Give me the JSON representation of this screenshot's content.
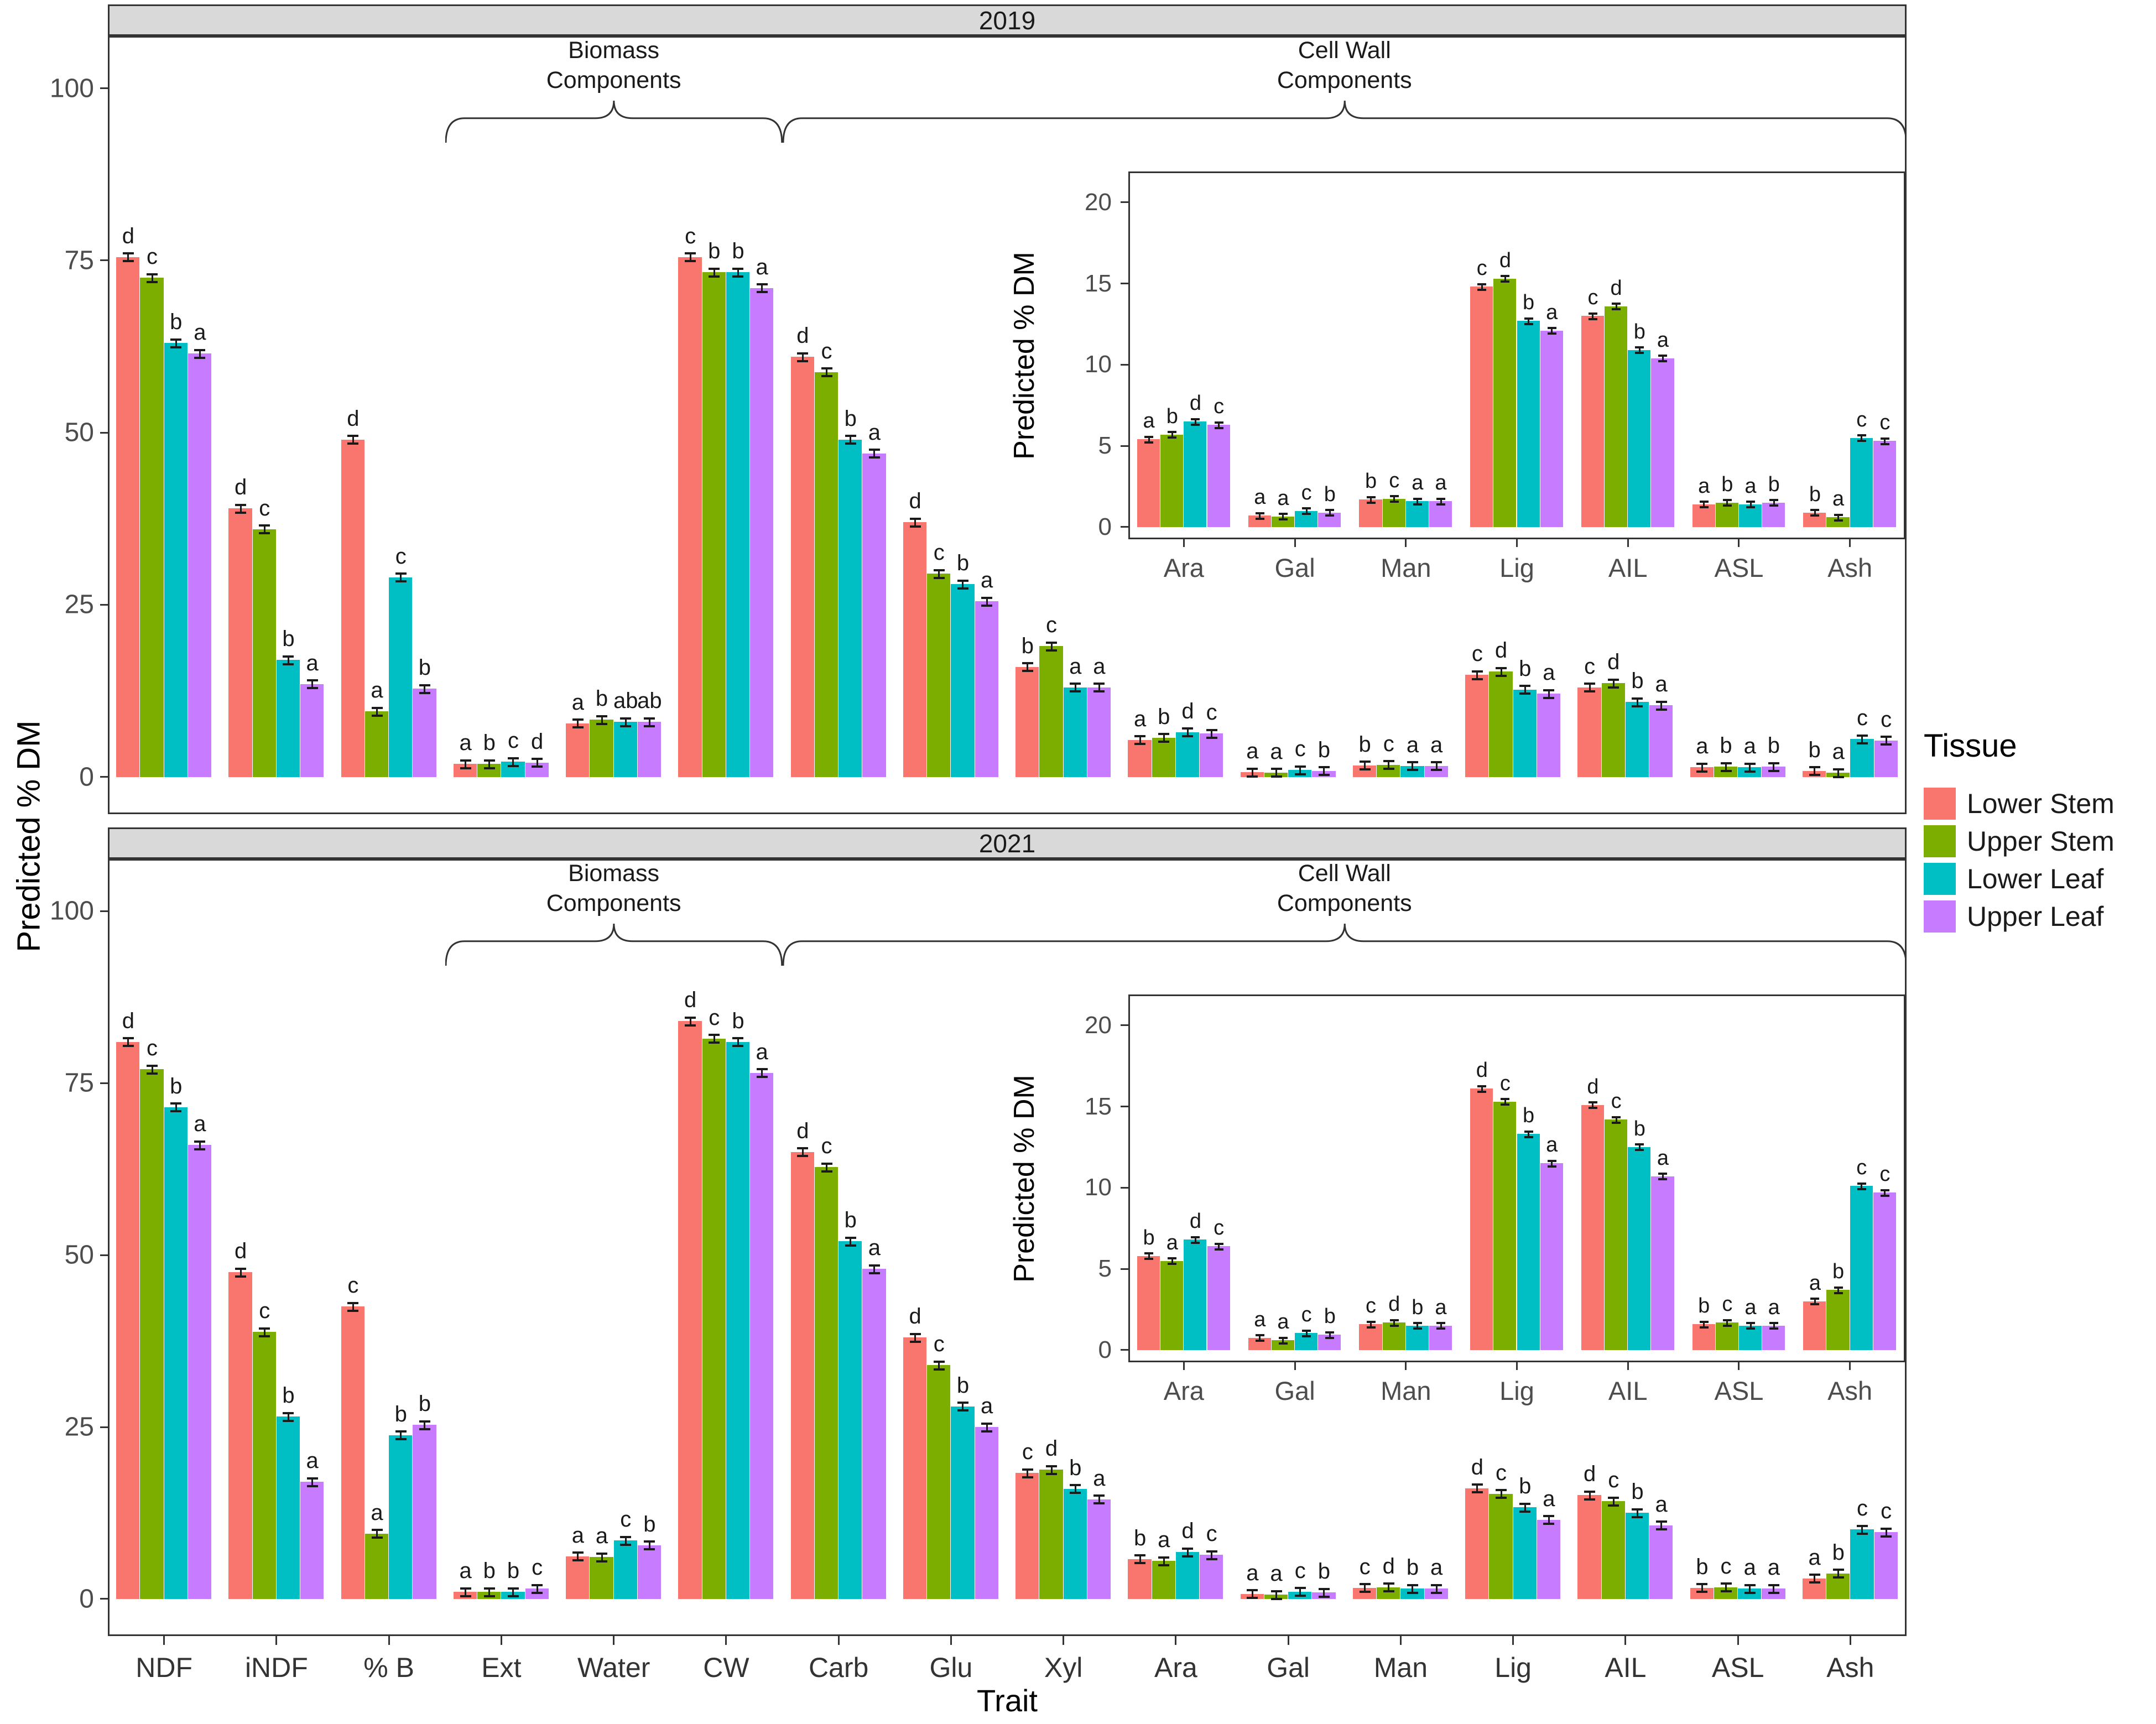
{
  "axes": {
    "y_title": "Predicted % DM",
    "x_title": "Trait"
  },
  "legend": {
    "title": "Tissue",
    "items": [
      {
        "label": "Lower Stem",
        "color": "#F8766D"
      },
      {
        "label": "Upper Stem",
        "color": "#7CAE00"
      },
      {
        "label": "Lower Leaf",
        "color": "#00BFC4"
      },
      {
        "label": "Upper Leaf",
        "color": "#C77CFF"
      }
    ]
  },
  "colors": {
    "palette": [
      "#F8766D",
      "#7CAE00",
      "#00BFC4",
      "#C77CFF"
    ],
    "strip_bg": "#D9D9D9",
    "panel_border": "#333333",
    "axis_text": "#4D4D4D"
  },
  "chart_data": [
    {
      "type": "bar",
      "title": "2019",
      "ylabel": "Predicted % DM",
      "xlabel": "Trait",
      "ylim": [
        0,
        100
      ],
      "yticks": [
        0,
        25,
        50,
        75,
        100
      ],
      "grid": false,
      "legend_position": "right",
      "series_names": [
        "Lower Stem",
        "Upper Stem",
        "Lower Leaf",
        "Upper Leaf"
      ],
      "error_bars": true,
      "groups": [
        {
          "trait": "NDF",
          "values": [
            75.5,
            72.5,
            63.0,
            61.5
          ],
          "letters": [
            "d",
            "c",
            "b",
            "a"
          ]
        },
        {
          "trait": "iNDF",
          "values": [
            39.0,
            36.0,
            17.0,
            13.5
          ],
          "letters": [
            "d",
            "c",
            "b",
            "a"
          ]
        },
        {
          "trait": "% B",
          "values": [
            49.0,
            9.5,
            29.0,
            12.8
          ],
          "letters": [
            "d",
            "a",
            "c",
            "b"
          ]
        },
        {
          "trait": "Ext",
          "values": [
            1.9,
            1.9,
            2.2,
            2.1
          ],
          "letters": [
            "a",
            "b",
            "c",
            "d"
          ]
        },
        {
          "trait": "Water",
          "values": [
            7.8,
            8.3,
            8.0,
            8.0
          ],
          "letters": [
            "a",
            "b",
            "ab",
            "ab"
          ]
        },
        {
          "trait": "CW",
          "values": [
            75.5,
            73.3,
            73.3,
            71.0
          ],
          "letters": [
            "c",
            "b",
            "b",
            "a"
          ]
        },
        {
          "trait": "Carb",
          "values": [
            61.0,
            58.8,
            49.0,
            47.0
          ],
          "letters": [
            "d",
            "c",
            "b",
            "a"
          ]
        },
        {
          "trait": "Glu",
          "values": [
            37.0,
            29.5,
            28.0,
            25.5
          ],
          "letters": [
            "d",
            "c",
            "b",
            "a"
          ]
        },
        {
          "trait": "Xyl",
          "values": [
            16.0,
            19.0,
            13.0,
            13.0
          ],
          "letters": [
            "b",
            "c",
            "a",
            "a"
          ]
        },
        {
          "trait": "Ara",
          "values": [
            5.4,
            5.7,
            6.5,
            6.3
          ],
          "letters": [
            "a",
            "b",
            "d",
            "c"
          ]
        },
        {
          "trait": "Gal",
          "values": [
            0.7,
            0.65,
            1.0,
            0.9
          ],
          "letters": [
            "a",
            "a",
            "c",
            "b"
          ]
        },
        {
          "trait": "Man",
          "values": [
            1.7,
            1.75,
            1.6,
            1.6
          ],
          "letters": [
            "b",
            "c",
            "a",
            "a"
          ]
        },
        {
          "trait": "Lig",
          "values": [
            14.8,
            15.3,
            12.7,
            12.1
          ],
          "letters": [
            "c",
            "d",
            "b",
            "a"
          ]
        },
        {
          "trait": "AIL",
          "values": [
            13.0,
            13.6,
            10.9,
            10.4
          ],
          "letters": [
            "c",
            "d",
            "b",
            "a"
          ]
        },
        {
          "trait": "ASL",
          "values": [
            1.4,
            1.5,
            1.4,
            1.5
          ],
          "letters": [
            "a",
            "b",
            "a",
            "b"
          ]
        },
        {
          "trait": "Ash",
          "values": [
            0.9,
            0.6,
            5.5,
            5.3
          ],
          "letters": [
            "b",
            "a",
            "c",
            "c"
          ]
        }
      ],
      "inset": {
        "ylabel": "Predicted % DM",
        "yticks": [
          0,
          5,
          10,
          15,
          20
        ],
        "categories": [
          "Ara",
          "Gal",
          "Man",
          "Lig",
          "AIL",
          "ASL",
          "Ash"
        ]
      },
      "annotations": [
        {
          "line1": "Biomass",
          "line2": "Components",
          "from": "Ext",
          "to": "CW"
        },
        {
          "line1": "Cell Wall",
          "line2": "Components",
          "from": "Carb",
          "to": "Ash"
        }
      ]
    },
    {
      "type": "bar",
      "title": "2021",
      "ylabel": "Predicted % DM",
      "xlabel": "Trait",
      "ylim": [
        0,
        100
      ],
      "yticks": [
        0,
        25,
        50,
        75,
        100
      ],
      "grid": false,
      "legend_position": "right",
      "series_names": [
        "Lower Stem",
        "Upper Stem",
        "Lower Leaf",
        "Upper Leaf"
      ],
      "error_bars": true,
      "groups": [
        {
          "trait": "NDF",
          "values": [
            81.0,
            77.0,
            71.5,
            66.0
          ],
          "letters": [
            "d",
            "c",
            "b",
            "a"
          ]
        },
        {
          "trait": "iNDF",
          "values": [
            47.5,
            38.8,
            26.5,
            17.0
          ],
          "letters": [
            "d",
            "c",
            "b",
            "a"
          ]
        },
        {
          "trait": "% B",
          "values": [
            42.5,
            9.5,
            23.8,
            25.3
          ],
          "letters": [
            "c",
            "a",
            "b",
            "b"
          ]
        },
        {
          "trait": "Ext",
          "values": [
            1.0,
            1.0,
            1.0,
            1.5
          ],
          "letters": [
            "a",
            "b",
            "b",
            "c"
          ]
        },
        {
          "trait": "Water",
          "values": [
            6.2,
            6.1,
            8.5,
            7.8
          ],
          "letters": [
            "a",
            "a",
            "c",
            "b"
          ]
        },
        {
          "trait": "CW",
          "values": [
            84.0,
            81.5,
            81.0,
            76.5
          ],
          "letters": [
            "d",
            "c",
            "b",
            "a"
          ]
        },
        {
          "trait": "Carb",
          "values": [
            65.0,
            62.8,
            52.0,
            48.0
          ],
          "letters": [
            "d",
            "c",
            "b",
            "a"
          ]
        },
        {
          "trait": "Glu",
          "values": [
            38.0,
            34.0,
            28.0,
            25.0
          ],
          "letters": [
            "d",
            "c",
            "b",
            "a"
          ]
        },
        {
          "trait": "Xyl",
          "values": [
            18.3,
            18.8,
            16.0,
            14.5
          ],
          "letters": [
            "c",
            "d",
            "b",
            "a"
          ]
        },
        {
          "trait": "Ara",
          "values": [
            5.8,
            5.5,
            6.8,
            6.4
          ],
          "letters": [
            "b",
            "a",
            "d",
            "c"
          ]
        },
        {
          "trait": "Gal",
          "values": [
            0.75,
            0.6,
            1.05,
            0.95
          ],
          "letters": [
            "a",
            "a",
            "c",
            "b"
          ]
        },
        {
          "trait": "Man",
          "values": [
            1.6,
            1.7,
            1.5,
            1.5
          ],
          "letters": [
            "c",
            "d",
            "b",
            "a"
          ]
        },
        {
          "trait": "Lig",
          "values": [
            16.1,
            15.3,
            13.3,
            11.5
          ],
          "letters": [
            "d",
            "c",
            "b",
            "a"
          ]
        },
        {
          "trait": "AIL",
          "values": [
            15.1,
            14.2,
            12.5,
            10.7
          ],
          "letters": [
            "d",
            "c",
            "b",
            "a"
          ]
        },
        {
          "trait": "ASL",
          "values": [
            1.6,
            1.7,
            1.5,
            1.5
          ],
          "letters": [
            "b",
            "c",
            "a",
            "a"
          ]
        },
        {
          "trait": "Ash",
          "values": [
            3.0,
            3.7,
            10.1,
            9.7
          ],
          "letters": [
            "a",
            "b",
            "c",
            "c"
          ]
        }
      ],
      "inset": {
        "ylabel": "Predicted % DM",
        "yticks": [
          0,
          5,
          10,
          15,
          20
        ],
        "categories": [
          "Ara",
          "Gal",
          "Man",
          "Lig",
          "AIL",
          "ASL",
          "Ash"
        ]
      },
      "annotations": [
        {
          "line1": "Biomass",
          "line2": "Components",
          "from": "Ext",
          "to": "CW"
        },
        {
          "line1": "Cell Wall",
          "line2": "Components",
          "from": "Carb",
          "to": "Ash"
        }
      ]
    }
  ]
}
